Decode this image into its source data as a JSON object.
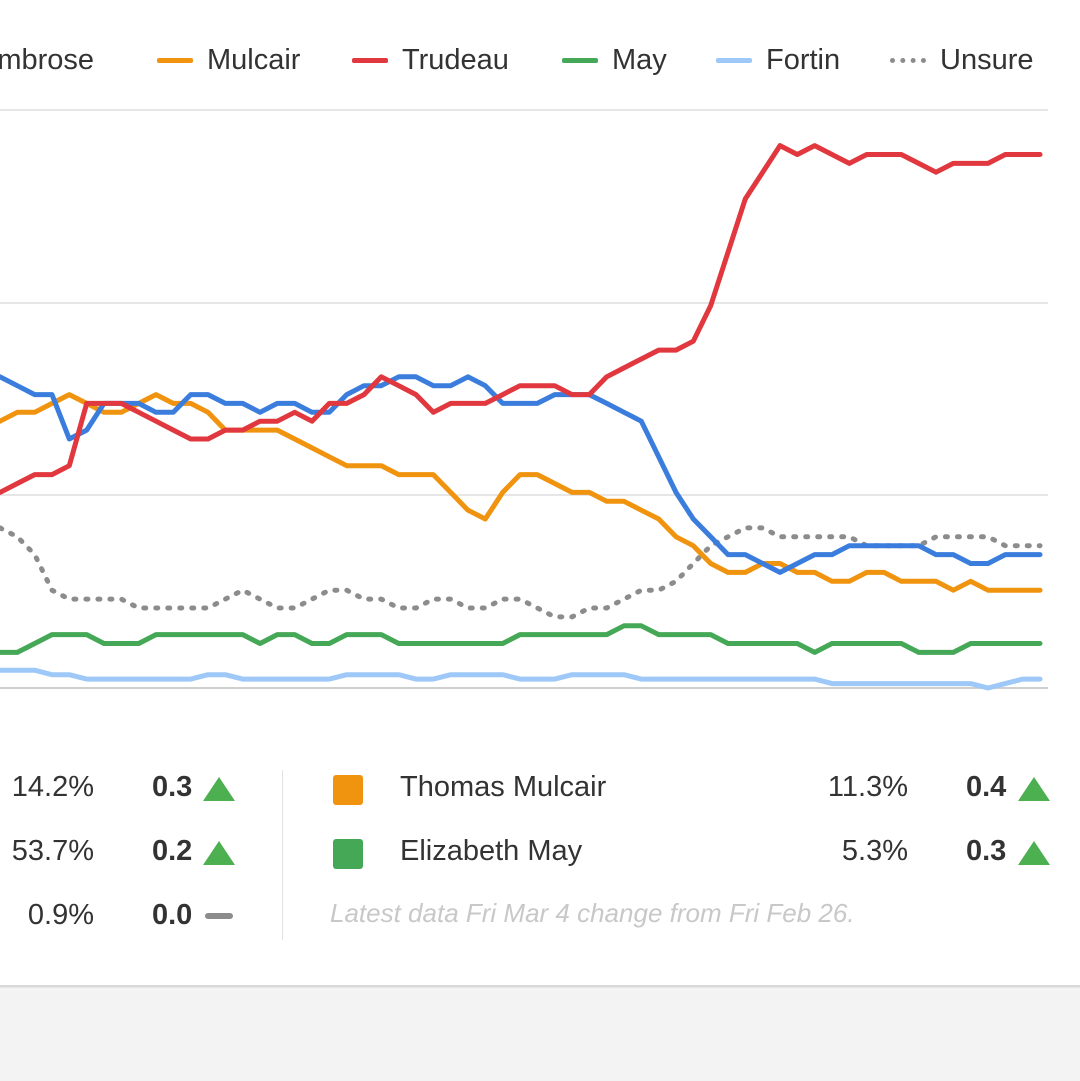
{
  "legend": [
    {
      "label": "Ambrose",
      "color": "#3b7ddd",
      "style": "solid"
    },
    {
      "label": "Mulcair",
      "color": "#f0930f",
      "style": "solid"
    },
    {
      "label": "Trudeau",
      "color": "#e0383e",
      "style": "solid"
    },
    {
      "label": "May",
      "color": "#45a856",
      "style": "solid"
    },
    {
      "label": "Fortin",
      "color": "#9ec8f7",
      "style": "solid"
    },
    {
      "label": "Unsure",
      "color": "#8c8c8c",
      "style": "dotted"
    }
  ],
  "chart_data": {
    "type": "line",
    "ylim": [
      0,
      65
    ],
    "grid": true,
    "legend_position": "top",
    "series": [
      {
        "name": "Trudeau",
        "color": "#e0383e",
        "values": [
          22,
          23,
          24,
          24,
          25,
          32,
          32,
          32,
          31,
          30,
          29,
          28,
          28,
          29,
          29,
          30,
          30,
          31,
          30,
          32,
          32,
          33,
          35,
          34,
          33,
          31,
          32,
          32,
          32,
          33,
          34,
          34,
          34,
          33,
          33,
          35,
          36,
          37,
          38,
          38,
          39,
          43,
          49,
          55,
          58,
          61,
          60,
          61,
          60,
          59,
          60,
          60,
          60,
          59,
          58,
          59,
          59,
          59,
          60,
          60,
          60
        ]
      },
      {
        "name": "Ambrose",
        "color": "#3b7ddd",
        "values": [
          35,
          34,
          33,
          33,
          28,
          29,
          32,
          32,
          32,
          31,
          31,
          33,
          33,
          32,
          32,
          31,
          32,
          32,
          31,
          31,
          33,
          34,
          34,
          35,
          35,
          34,
          34,
          35,
          34,
          32,
          32,
          32,
          33,
          33,
          33,
          32,
          31,
          30,
          26,
          22,
          19,
          17,
          15,
          15,
          14,
          13,
          14,
          15,
          15,
          16,
          16,
          16,
          16,
          16,
          15,
          15,
          14,
          14,
          15,
          15,
          15
        ]
      },
      {
        "name": "Mulcair",
        "color": "#f0930f",
        "values": [
          30,
          31,
          31,
          32,
          33,
          32,
          31,
          31,
          32,
          33,
          32,
          32,
          31,
          29,
          29,
          29,
          29,
          28,
          27,
          26,
          25,
          25,
          25,
          24,
          24,
          24,
          22,
          20,
          19,
          22,
          24,
          24,
          23,
          22,
          22,
          21,
          21,
          20,
          19,
          17,
          16,
          14,
          13,
          13,
          14,
          14,
          13,
          13,
          12,
          12,
          13,
          13,
          12,
          12,
          12,
          11,
          12,
          11,
          11,
          11,
          11
        ]
      },
      {
        "name": "Unsure",
        "color": "#8c8c8c",
        "values": [
          18,
          17,
          15,
          11,
          10,
          10,
          10,
          10,
          9,
          9,
          9,
          9,
          9,
          10,
          11,
          10,
          9,
          9,
          10,
          11,
          11,
          10,
          10,
          9,
          9,
          10,
          10,
          9,
          9,
          10,
          10,
          9,
          8,
          8,
          9,
          9,
          10,
          11,
          11,
          12,
          14,
          16,
          17,
          18,
          18,
          17,
          17,
          17,
          17,
          17,
          16,
          16,
          16,
          16,
          17,
          17,
          17,
          17,
          16,
          16,
          16
        ]
      },
      {
        "name": "May",
        "color": "#45a856",
        "values": [
          4,
          4,
          5,
          6,
          6,
          6,
          5,
          5,
          5,
          6,
          6,
          6,
          6,
          6,
          6,
          5,
          6,
          6,
          5,
          5,
          6,
          6,
          6,
          5,
          5,
          5,
          5,
          5,
          5,
          5,
          6,
          6,
          6,
          6,
          6,
          6,
          7,
          7,
          6,
          6,
          6,
          6,
          5,
          5,
          5,
          5,
          5,
          4,
          5,
          5,
          5,
          5,
          5,
          4,
          4,
          4,
          5,
          5,
          5,
          5,
          5
        ]
      },
      {
        "name": "Fortin",
        "color": "#9ec8f7",
        "values": [
          2,
          2,
          2,
          1.5,
          1.5,
          1,
          1,
          1,
          1,
          1,
          1,
          1,
          1.5,
          1.5,
          1,
          1,
          1,
          1,
          1,
          1,
          1.5,
          1.5,
          1.5,
          1.5,
          1,
          1,
          1.5,
          1.5,
          1.5,
          1.5,
          1,
          1,
          1,
          1.5,
          1.5,
          1.5,
          1.5,
          1,
          1,
          1,
          1,
          1,
          1,
          1,
          1,
          1,
          1,
          1,
          0.5,
          0.5,
          0.5,
          0.5,
          0.5,
          0.5,
          0.5,
          0.5,
          0.5,
          0,
          0.5,
          1,
          1
        ]
      }
    ]
  },
  "summary": {
    "left_rows": [
      {
        "pct": "14.2%",
        "change": "0.3",
        "trend": "up"
      },
      {
        "pct": "53.7%",
        "change": "0.2",
        "trend": "up"
      },
      {
        "pct": "0.9%",
        "change": "0.0",
        "trend": "flat"
      }
    ],
    "right_rows": [
      {
        "name": "Thomas Mulcair",
        "color": "#f0930f",
        "pct": "11.3%",
        "change": "0.4",
        "trend": "up"
      },
      {
        "name": "Elizabeth May",
        "color": "#45a856",
        "pct": "5.3%",
        "change": "0.3",
        "trend": "up"
      }
    ],
    "note": "Latest data Fri Mar 4 change from Fri Feb 26."
  }
}
